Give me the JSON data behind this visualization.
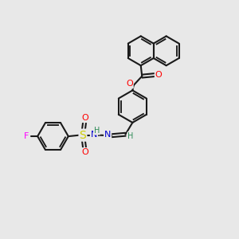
{
  "bg_color": "#e8e8e8",
  "bond_color": "#1a1a1a",
  "bond_width": 1.5,
  "atom_colors": {
    "O": "#ff0000",
    "N": "#0000cd",
    "S": "#cccc00",
    "F": "#ff00ff",
    "H": "#2e8b57",
    "C": "#1a1a1a"
  },
  "font_size": 8,
  "fig_width": 3.0,
  "fig_height": 3.0
}
